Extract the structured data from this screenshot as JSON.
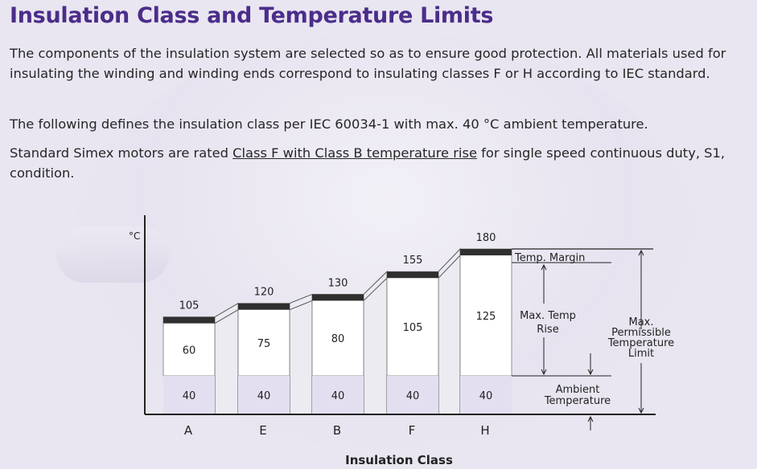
{
  "header": {
    "title": "Insulation Class and Temperature Limits"
  },
  "body": {
    "p1": "The components of the insulation system are selected so as to ensure good protection. All materials used for insulating the winding and winding ends correspond to insulating classes F or H according to IEC standard.",
    "p2": "The following defines the insulation class per IEC 60034-1 with max. 40 °C ambient temperature.",
    "p3_pre": "Standard Simex motors are rated ",
    "p3_link": "Class F with Class B temperature rise",
    "p3_post": " for single speed continuous duty, S1, condition."
  },
  "chart_data": {
    "type": "bar",
    "ylabel": "°C",
    "xlabel": "Insulation Class",
    "categories": [
      "A",
      "E",
      "B",
      "F",
      "H"
    ],
    "ambient": [
      40,
      40,
      40,
      40,
      40
    ],
    "temp_rise": [
      60,
      75,
      80,
      105,
      125
    ],
    "totals": [
      105,
      120,
      130,
      155,
      180
    ],
    "margin": [
      5,
      5,
      10,
      10,
      15
    ],
    "annotations": {
      "temp_margin": "Temp. Margin",
      "max_temp_rise": [
        "Max. Temp",
        "Rise"
      ],
      "max_permissible": [
        "Max.",
        "Permissible",
        "Temperature",
        "Limit"
      ],
      "ambient": [
        "Ambient",
        "Temperature"
      ]
    },
    "colors": {
      "bar": "#ffffff",
      "ambient": "#e3dff0",
      "margin": "#2f2f2f",
      "connector": "#ecebf2",
      "axis": "#222222"
    }
  }
}
